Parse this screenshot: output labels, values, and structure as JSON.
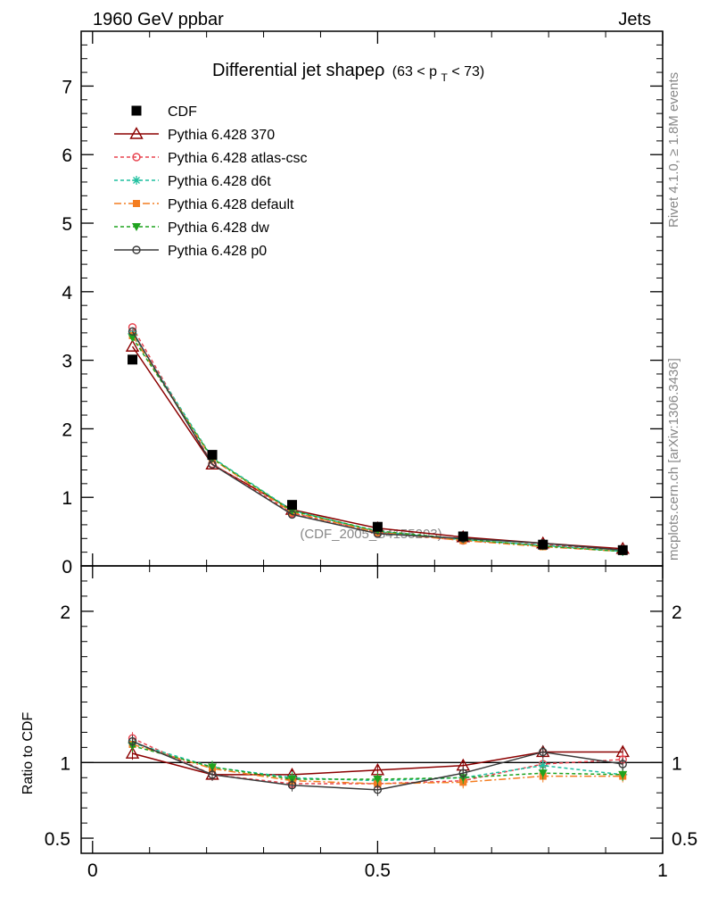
{
  "header": {
    "left": "1960 GeV ppbar",
    "right": "Jets"
  },
  "side_labels": {
    "rivet": "Rivet 4.1.0, ≥ 1.8M events",
    "mcplots": "mcplots.cern.ch [arXiv:1306.3436]"
  },
  "watermark": "(CDF_2005_S4155203)",
  "title": {
    "main": "Differential jet shapeρ",
    "range_prefix": "(63 < p",
    "range_sub": "T",
    "range_suffix": " < 73)"
  },
  "ratio_ylabel": "Ratio to CDF",
  "chart_data": {
    "type": "line",
    "title": "Differential jet shape ρ (63 < pT < 73)",
    "x": [
      0.07,
      0.21,
      0.35,
      0.5,
      0.65,
      0.79,
      0.93
    ],
    "xlim": [
      -0.02,
      1.0
    ],
    "xticks": [
      0,
      0.5,
      1
    ],
    "xtick_labels": [
      "0",
      "0.5",
      "1"
    ],
    "main": {
      "ylim": [
        0,
        7.8
      ],
      "yticks": [
        0,
        1,
        2,
        3,
        4,
        5,
        6,
        7
      ],
      "ytick_labels": [
        "0",
        "1",
        "2",
        "3",
        "4",
        "5",
        "6",
        "7"
      ]
    },
    "ratio": {
      "ylabel": "Ratio to CDF",
      "ylim": [
        0.4,
        2.3
      ],
      "yticks": [
        0.5,
        1,
        2
      ],
      "ytick_labels": [
        "0.5",
        "1",
        "2"
      ],
      "reference": 1
    },
    "data": {
      "name": "CDF",
      "color": "#000000",
      "values": [
        3.01,
        1.62,
        0.89,
        0.57,
        0.43,
        0.31,
        0.23
      ]
    },
    "series": [
      {
        "name": "Pythia 6.428 370",
        "color": "#8b0000",
        "dash": "",
        "marker": "triangle-open",
        "values": [
          3.2,
          1.48,
          0.82,
          0.55,
          0.42,
          0.33,
          0.25
        ],
        "ratio": [
          1.06,
          0.92,
          0.92,
          0.95,
          0.98,
          1.07,
          1.07
        ]
      },
      {
        "name": "Pythia 6.428 atlas-csc",
        "color": "#e8434f",
        "dash": "4,3",
        "marker": "circle-open",
        "values": [
          3.48,
          1.49,
          0.77,
          0.49,
          0.37,
          0.31,
          0.23
        ],
        "ratio": [
          1.16,
          0.92,
          0.86,
          0.86,
          0.88,
          0.99,
          1.02
        ]
      },
      {
        "name": "Pythia 6.428 d6t",
        "color": "#1fbf9f",
        "dash": "4,3",
        "marker": "asterisk",
        "values": [
          3.39,
          1.58,
          0.81,
          0.5,
          0.38,
          0.3,
          0.21
        ],
        "ratio": [
          1.13,
          0.97,
          0.9,
          0.88,
          0.9,
          0.98,
          0.92
        ]
      },
      {
        "name": "Pythia 6.428 default",
        "color": "#f47d20",
        "dash": "8,3,2,3",
        "marker": "square",
        "values": [
          3.36,
          1.56,
          0.78,
          0.49,
          0.37,
          0.28,
          0.21
        ],
        "ratio": [
          1.12,
          0.96,
          0.88,
          0.86,
          0.87,
          0.91,
          0.91
        ]
      },
      {
        "name": "Pythia 6.428 dw",
        "color": "#1fa31f",
        "dash": "4,3",
        "marker": "triangle-down",
        "values": [
          3.33,
          1.57,
          0.8,
          0.51,
          0.39,
          0.29,
          0.21
        ],
        "ratio": [
          1.11,
          0.97,
          0.89,
          0.89,
          0.9,
          0.93,
          0.92
        ]
      },
      {
        "name": "Pythia 6.428 p0",
        "color": "#3a3a3a",
        "dash": "",
        "marker": "circle-open",
        "values": [
          3.42,
          1.48,
          0.75,
          0.47,
          0.4,
          0.33,
          0.23
        ],
        "ratio": [
          1.14,
          0.92,
          0.85,
          0.82,
          0.93,
          1.07,
          0.99
        ]
      }
    ]
  }
}
